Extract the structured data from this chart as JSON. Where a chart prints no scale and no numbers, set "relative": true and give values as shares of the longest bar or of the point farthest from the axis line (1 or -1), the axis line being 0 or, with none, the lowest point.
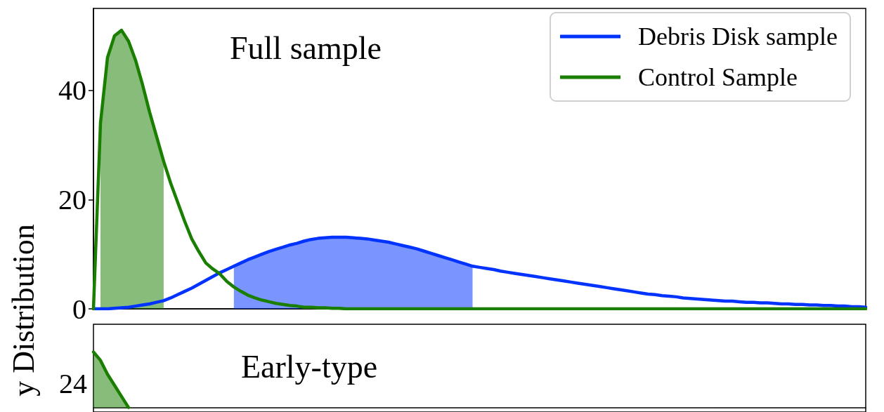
{
  "chart_data": [
    {
      "type": "line",
      "title": "Full sample",
      "ylabel": "y Distribution",
      "categories": [
        null,
        null,
        null,
        null,
        null,
        null,
        null,
        null,
        null,
        null,
        null,
        null,
        null,
        null,
        null,
        null,
        null,
        null,
        null,
        null,
        null,
        null,
        null,
        null,
        null,
        null,
        null,
        null,
        null,
        null,
        null,
        null,
        null,
        null,
        null,
        null,
        null,
        null,
        null,
        null,
        null,
        null,
        null,
        null,
        null,
        null,
        null,
        null,
        null,
        null,
        null,
        null,
        null,
        null,
        null,
        null,
        null,
        null,
        null,
        null,
        null,
        null,
        null,
        null,
        null,
        null,
        null,
        null,
        null,
        null,
        null,
        null,
        null,
        null,
        null,
        null,
        null,
        null,
        null,
        null,
        null,
        null,
        null,
        null,
        null,
        null,
        null,
        null,
        null,
        null,
        null,
        null,
        null,
        null,
        null,
        null,
        null,
        null,
        null,
        null,
        null,
        null,
        null,
        null,
        null,
        null,
        null,
        null,
        null,
        null,
        null
      ],
      "series": [
        {
          "name": "Debris Disk sample",
          "color": "#0033ff",
          "values": [
            0,
            0,
            0,
            0.1,
            0.2,
            0.3,
            0.5,
            0.7,
            0.9,
            1.2,
            1.5,
            2,
            2.6,
            3.2,
            3.8,
            4.5,
            5.2,
            5.9,
            6.6,
            7.2,
            7.8,
            8.4,
            9,
            9.5,
            10,
            10.5,
            10.9,
            11.3,
            11.7,
            12,
            12.4,
            12.7,
            12.9,
            13,
            13.1,
            13.1,
            13.1,
            13,
            12.9,
            12.8,
            12.6,
            12.4,
            12.2,
            11.9,
            11.6,
            11.3,
            11,
            10.6,
            10.2,
            9.8,
            9.4,
            9,
            8.6,
            8.2,
            7.8,
            7.6,
            7.4,
            7.2,
            6.9,
            6.7,
            6.5,
            6.3,
            6.1,
            5.9,
            5.7,
            5.5,
            5.3,
            5.1,
            4.9,
            4.7,
            4.5,
            4.3,
            4.1,
            3.9,
            3.7,
            3.5,
            3.3,
            3.1,
            2.9,
            2.7,
            2.6,
            2.4,
            2.3,
            2.2,
            2,
            1.9,
            1.8,
            1.7,
            1.6,
            1.5,
            1.4,
            1.4,
            1.3,
            1.2,
            1.2,
            1.1,
            1.1,
            1,
            0.9,
            0.9,
            0.8,
            0.8,
            0.7,
            0.7,
            0.6,
            0.6,
            0.5,
            0.5,
            0.4,
            0.4,
            0.3
          ]
        },
        {
          "name": "Control Sample",
          "color": "#1a7f00",
          "values": [
            0,
            34,
            46,
            50,
            51,
            49,
            45.5,
            41,
            36,
            31.5,
            27,
            23,
            19.5,
            16,
            12.8,
            10.5,
            8.4,
            7.3,
            6.4,
            5,
            4,
            3.2,
            2.5,
            2,
            1.6,
            1.3,
            1,
            0.8,
            0.6,
            0.5,
            0.3,
            0.3,
            0.2,
            0.2,
            0.1,
            0.1,
            0,
            0,
            0,
            0,
            0,
            0,
            0,
            0,
            0,
            0,
            0,
            0,
            0,
            0,
            0,
            0,
            0,
            0,
            0,
            0,
            0,
            0,
            0,
            0,
            0,
            0,
            0,
            0,
            0,
            0,
            0,
            0,
            0,
            0,
            0,
            0,
            0,
            0,
            0,
            0,
            0,
            0,
            0,
            0,
            0,
            0,
            0,
            0,
            0,
            0,
            0,
            0,
            0,
            0,
            0,
            0,
            0,
            0,
            0,
            0,
            0,
            0,
            0,
            0,
            0,
            0,
            0,
            0,
            0,
            0,
            0,
            0,
            0,
            0,
            0
          ]
        },
        {
          "type": "area",
          "color": "#1a7f00",
          "values": [
            null,
            34,
            46,
            50,
            51,
            49,
            45.5,
            41,
            36,
            31.5,
            27,
            null,
            null,
            null,
            null,
            null,
            null,
            null,
            null,
            null,
            null,
            null,
            null,
            null,
            null,
            null,
            null,
            null,
            null,
            null,
            null,
            null,
            null,
            null,
            null,
            null,
            null,
            null,
            null,
            null,
            null,
            null,
            null,
            null,
            null,
            null,
            null,
            null,
            null,
            null,
            null,
            null,
            null,
            null,
            null,
            null,
            null,
            null,
            null,
            null,
            null,
            null,
            null,
            null,
            null,
            null,
            null,
            null,
            null,
            null,
            null,
            null,
            null,
            null,
            null,
            null,
            null,
            null,
            null,
            null,
            null,
            null,
            null,
            null,
            null,
            null,
            null,
            null,
            null,
            null,
            null,
            null,
            null,
            null,
            null,
            null,
            null,
            null,
            null,
            null,
            null,
            null,
            null,
            null,
            null,
            null,
            null,
            null,
            null,
            null,
            null
          ]
        },
        {
          "type": "area",
          "color": "#0033ff",
          "values": [
            null,
            null,
            null,
            null,
            null,
            null,
            null,
            null,
            null,
            null,
            null,
            null,
            null,
            null,
            null,
            null,
            null,
            null,
            null,
            null,
            7.8,
            8.4,
            9,
            9.5,
            10,
            10.5,
            10.9,
            11.3,
            11.7,
            12,
            12.4,
            12.7,
            12.9,
            13,
            13.1,
            13.1,
            13.1,
            13,
            12.9,
            12.8,
            12.6,
            12.4,
            12.2,
            11.9,
            11.6,
            11.3,
            11,
            10.6,
            10.2,
            9.8,
            9.4,
            9,
            8.6,
            8.2,
            7.8,
            null,
            null,
            null,
            null,
            null,
            null,
            null,
            null,
            null,
            null,
            null,
            null,
            null,
            null,
            null,
            null,
            null,
            null,
            null,
            null,
            null,
            null,
            null,
            null,
            null,
            null,
            null,
            null,
            null,
            null,
            null,
            null,
            null,
            null,
            null,
            null,
            null,
            null,
            null,
            null,
            null,
            null,
            null,
            null,
            null,
            null,
            null,
            null,
            null,
            null,
            null,
            null,
            null,
            null,
            null,
            null
          ]
        }
      ],
      "ylim": [
        0,
        55
      ],
      "yticks": [
        0,
        20,
        40
      ],
      "tick_labels": "y",
      "legend": "top right"
    },
    {
      "type": "area",
      "title": "Early-type",
      "categories": [
        null,
        null,
        null,
        null,
        null,
        null,
        null,
        null,
        null,
        null,
        null,
        null,
        null,
        null,
        null,
        null,
        null,
        null,
        null,
        null,
        null,
        null,
        null,
        null,
        null,
        null,
        null,
        null,
        null,
        null,
        null,
        null,
        null,
        null,
        null,
        null,
        null,
        null,
        null,
        null,
        null,
        null,
        null,
        null,
        null,
        null,
        null,
        null,
        null,
        null,
        null,
        null,
        null,
        null,
        null,
        null,
        null,
        null,
        null,
        null,
        null,
        null,
        null,
        null,
        null,
        null,
        null,
        null,
        null,
        null,
        null,
        null,
        null,
        null,
        null,
        null,
        null,
        null,
        null,
        null,
        null,
        null,
        null,
        null,
        null,
        null,
        null,
        null,
        null,
        null,
        null,
        null,
        null,
        null,
        null,
        null,
        null,
        null,
        null,
        null,
        null,
        null,
        null,
        null,
        null,
        null,
        null,
        null,
        null,
        null,
        null
      ],
      "series": [
        {
          "color": "#1a7f00",
          "values": [
            1,
            0.85,
            0.6,
            0.4,
            0.2,
            0,
            null,
            null,
            null,
            null,
            null,
            null,
            null,
            null,
            null,
            null,
            null,
            null,
            null,
            null,
            null,
            null,
            null,
            null,
            null,
            null,
            null,
            null,
            null,
            null,
            null,
            null,
            null,
            null,
            null,
            null,
            null,
            null,
            null,
            null,
            null,
            null,
            null,
            null,
            null,
            null,
            null,
            null,
            null,
            null,
            null,
            null,
            null,
            null,
            null,
            null,
            null,
            null,
            null,
            null,
            null,
            null,
            null,
            null,
            null,
            null,
            null,
            null,
            null,
            null,
            null,
            null,
            null,
            null,
            null,
            null,
            null,
            null,
            null,
            null,
            null,
            null,
            null,
            null,
            null,
            null,
            null,
            null,
            null,
            null,
            null,
            null,
            null,
            null,
            null,
            null,
            null,
            null,
            null,
            null,
            null,
            null,
            null,
            null,
            null,
            null,
            null,
            null,
            null,
            null,
            null
          ]
        }
      ],
      "relative": true,
      "annotations": [
        "24"
      ],
      "tick_labels": false
    }
  ]
}
